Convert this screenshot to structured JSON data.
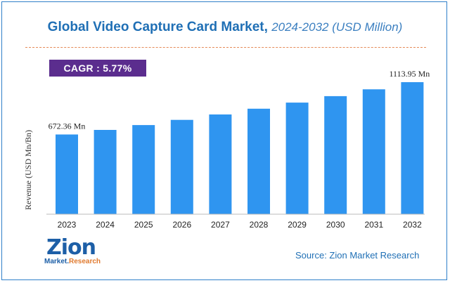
{
  "title": {
    "main": "Global Video Capture Card Market,",
    "sub": "2024-2032 (USD Million)"
  },
  "cagr": "CAGR :  5.77%",
  "source": "Source: Zion Market Research",
  "logo": {
    "name": "Zion",
    "tagline_a": "Market.",
    "tagline_b": "Research"
  },
  "colors": {
    "bar": "#2f95f0",
    "title": "#1f6fb5",
    "cagr_bg": "#5b2d8e",
    "divider": "#e58a57"
  },
  "chart_data": {
    "type": "bar",
    "categories": [
      "2023",
      "2024",
      "2025",
      "2026",
      "2027",
      "2028",
      "2029",
      "2030",
      "2031",
      "2032"
    ],
    "values": [
      672.36,
      711.15,
      752.2,
      795.6,
      841.5,
      890.1,
      941.5,
      995.8,
      1053.3,
      1113.95
    ],
    "ylabel": "Revenue (USD Mn/Bn)",
    "annotations": [
      {
        "index": 0,
        "text": "672.36 Mn"
      },
      {
        "index": 9,
        "text": "1113.95 Mn"
      }
    ],
    "ylim": [
      0,
      1200
    ],
    "grid": false
  }
}
